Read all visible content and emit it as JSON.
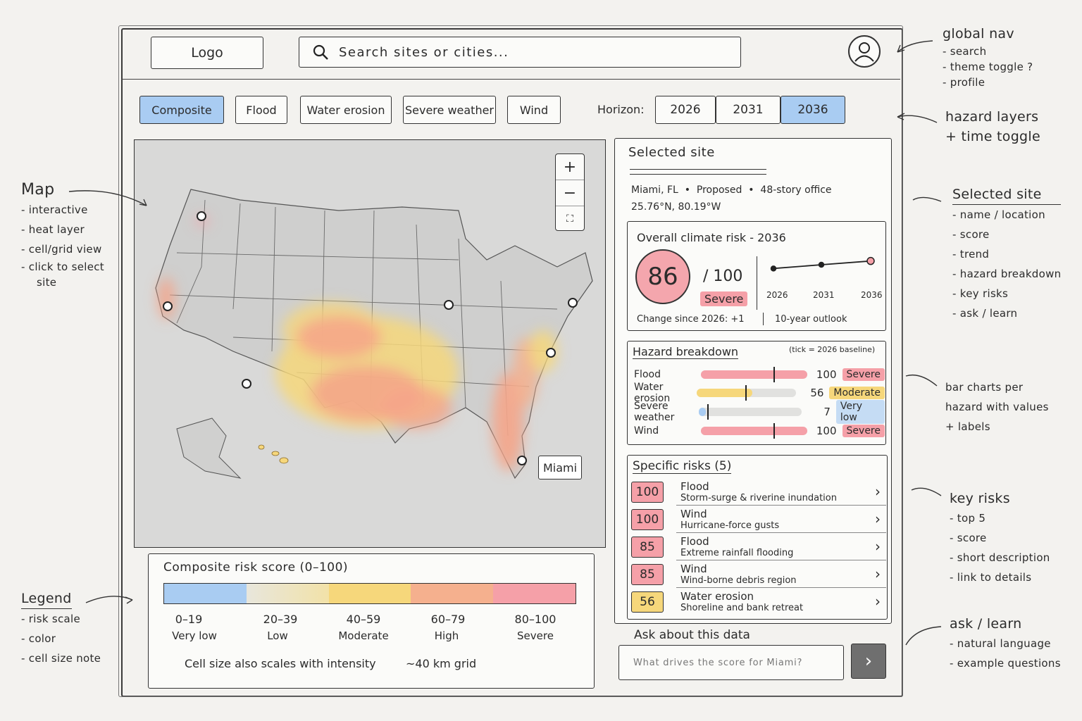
{
  "header": {
    "logo": "Logo",
    "search_placeholder": "Search sites or cities..."
  },
  "hazard_tabs": [
    {
      "label": "Composite",
      "active": true
    },
    {
      "label": "Flood",
      "active": false
    },
    {
      "label": "Water erosion",
      "active": false
    },
    {
      "label": "Severe weather",
      "active": false
    },
    {
      "label": "Wind",
      "active": false
    }
  ],
  "horizon": {
    "label": "Horizon:",
    "years": [
      {
        "label": "2026",
        "active": false
      },
      {
        "label": "2031",
        "active": false
      },
      {
        "label": "2036",
        "active": true
      }
    ]
  },
  "map": {
    "zoom_in": "+",
    "zoom_out": "−",
    "fullscreen": "⛶",
    "selected_label": "Miami"
  },
  "legend": {
    "title": "Composite risk score (0–100)",
    "colors": [
      "#a9ccf2",
      "#f2e7b5",
      "#f6d77b",
      "#f5b08e",
      "#f5a0a8"
    ],
    "ranges": [
      {
        "range": "0–19",
        "label": "Very low"
      },
      {
        "range": "20–39",
        "label": "Low"
      },
      {
        "range": "40–59",
        "label": "Moderate"
      },
      {
        "range": "60–79",
        "label": "High"
      },
      {
        "range": "80–100",
        "label": "Severe"
      }
    ],
    "note_left": "Cell size also scales with intensity",
    "note_right": "~40 km grid"
  },
  "selected_site": {
    "title": "Selected site",
    "location": "Miami, FL",
    "status": "Proposed",
    "type": "48-story office",
    "coords": "25.76°N, 80.19°W"
  },
  "overall_risk": {
    "title": "Overall climate risk - 2036",
    "score": "86",
    "out_of": "/ 100",
    "badge": "Severe",
    "change": "Change since 2026: +1",
    "outlook": "10-year outlook",
    "trend_years": [
      "2026",
      "2031",
      "2036"
    ],
    "trend_values": [
      85,
      85.5,
      86
    ]
  },
  "hazard_breakdown": {
    "title": "Hazard breakdown",
    "note": "(tick = 2026 baseline)",
    "rows": [
      {
        "name": "Flood",
        "value": "100",
        "fill": 1.0,
        "tick": 0.68,
        "badge": "Severe",
        "color": "#f5a0a8",
        "badge_class": "b-severe"
      },
      {
        "name": "Water erosion",
        "value": "56",
        "fill": 0.56,
        "tick": 0.49,
        "badge": "Moderate",
        "color": "#f6d77b",
        "badge_class": "b-moderate"
      },
      {
        "name": "Severe weather",
        "value": "7",
        "fill": 0.07,
        "tick": 0.08,
        "badge": "Very low",
        "color": "#a9ccf2",
        "badge_class": "b-verylow"
      },
      {
        "name": "Wind",
        "value": "100",
        "fill": 1.0,
        "tick": 0.68,
        "badge": "Severe",
        "color": "#f5a0a8",
        "badge_class": "b-severe"
      }
    ]
  },
  "specific_risks": {
    "title": "Specific risks (5)",
    "items": [
      {
        "score": "100",
        "name": "Flood",
        "desc": "Storm-surge & riverine inundation",
        "color": "#f5a0a8"
      },
      {
        "score": "100",
        "name": "Wind",
        "desc": "Hurricane-force gusts",
        "color": "#f5a0a8"
      },
      {
        "score": "85",
        "name": "Flood",
        "desc": "Extreme rainfall flooding",
        "color": "#f5a0a8"
      },
      {
        "score": "85",
        "name": "Wind",
        "desc": "Wind-borne debris region",
        "color": "#f5a0a8"
      },
      {
        "score": "56",
        "name": "Water erosion",
        "desc": "Shoreline and bank retreat",
        "color": "#f6d77b"
      }
    ]
  },
  "ask": {
    "title": "Ask about this data",
    "placeholder": "What drives the score for Miami?"
  },
  "annotations": {
    "global_nav": {
      "title": "global nav",
      "items": [
        "- search",
        "- theme toggle ?",
        "- profile"
      ]
    },
    "hazard_layers": {
      "lines": [
        "hazard layers",
        "+ time toggle"
      ]
    },
    "selected_site": {
      "title": "Selected site",
      "items": [
        "- name / location",
        "- score",
        "- trend",
        "- hazard breakdown",
        "- key risks",
        "- ask / learn"
      ]
    },
    "bar_charts": {
      "lines": [
        "bar charts per",
        "hazard with values",
        "+ labels"
      ]
    },
    "key_risks": {
      "title": "key risks",
      "items": [
        "- top 5",
        "- score",
        "- short description",
        "- link to details"
      ]
    },
    "ask_learn": {
      "title": "ask / learn",
      "items": [
        "- natural language",
        "- example questions"
      ]
    },
    "map": {
      "title": "Map",
      "items": [
        "- interactive",
        "- heat layer",
        "- cell/grid view",
        "- click to select",
        "site"
      ]
    },
    "legend": {
      "title": "Legend",
      "items": [
        "- risk scale",
        "- color",
        "- cell size note"
      ]
    }
  }
}
